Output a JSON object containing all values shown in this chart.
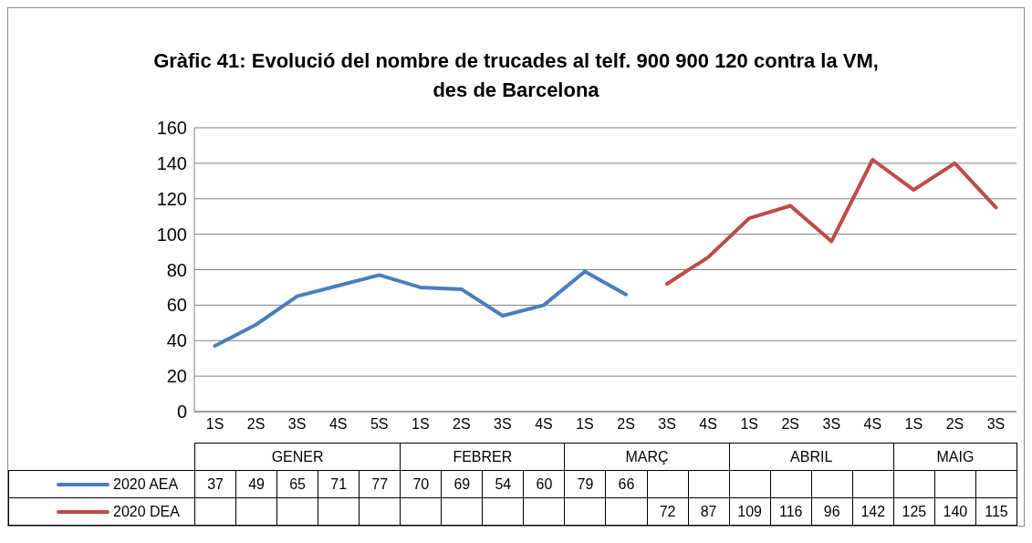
{
  "chart_data": {
    "type": "line",
    "title": "Gràfic 41: Evolució del nombre de trucades al telf. 900 900 120 contra la VM, des de Barcelona",
    "categories": [
      "1S",
      "2S",
      "3S",
      "4S",
      "5S",
      "1S",
      "2S",
      "3S",
      "4S",
      "1S",
      "2S",
      "3S",
      "4S",
      "1S",
      "2S",
      "3S",
      "4S",
      "1S",
      "2S",
      "3S"
    ],
    "annotations": [
      "GENER",
      "FEBRER",
      "MARÇ",
      "ABRIL",
      "MAIG"
    ],
    "series": [
      {
        "name": "2020 AEA",
        "color": "#4a7ebb",
        "values": [
          37,
          49,
          65,
          71,
          77,
          70,
          69,
          54,
          60,
          79,
          66,
          null,
          null,
          null,
          null,
          null,
          null,
          null,
          null,
          null
        ]
      },
      {
        "name": "2020 DEA",
        "color": "#be4b48",
        "values": [
          null,
          null,
          null,
          null,
          null,
          null,
          null,
          null,
          null,
          null,
          null,
          72,
          87,
          109,
          116,
          96,
          142,
          125,
          140,
          115
        ]
      }
    ],
    "ylim": [
      0,
      160
    ],
    "yticks": [
      0,
      20,
      40,
      60,
      80,
      100,
      120,
      140,
      160
    ],
    "grid": "y",
    "legend": "bottom",
    "data_labels": true,
    "marker": "none",
    "line_style": "solid"
  }
}
